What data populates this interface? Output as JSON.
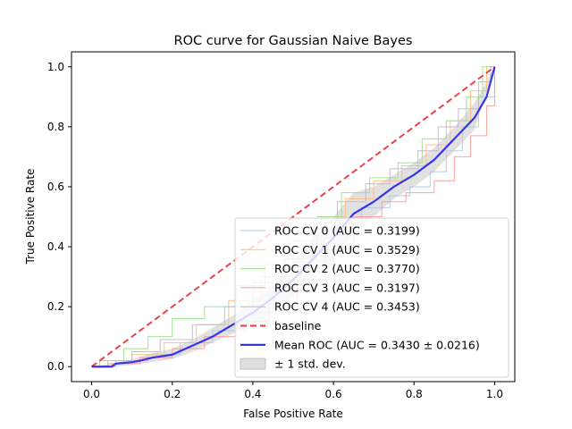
{
  "chart_data": {
    "type": "line",
    "title": "ROC curve for Gaussian Naive Bayes",
    "xlabel": "False Positive Rate",
    "ylabel": "True Positive Rate",
    "xlim": [
      -0.05,
      1.05
    ],
    "ylim": [
      -0.05,
      1.05
    ],
    "xticks": [
      "0.0",
      "0.2",
      "0.4",
      "0.6",
      "0.8",
      "1.0"
    ],
    "yticks": [
      "0.0",
      "0.2",
      "0.4",
      "0.6",
      "0.8",
      "1.0"
    ],
    "grid": false,
    "legend_position": "lower right",
    "series": [
      {
        "name": "ROC CV 0 (AUC = 0.3199)",
        "color": "#aec7e8",
        "points": [
          [
            0,
            0
          ],
          [
            0.06,
            0
          ],
          [
            0.06,
            0.02
          ],
          [
            0.14,
            0.02
          ],
          [
            0.14,
            0.04
          ],
          [
            0.22,
            0.04
          ],
          [
            0.22,
            0.08
          ],
          [
            0.3,
            0.08
          ],
          [
            0.3,
            0.12
          ],
          [
            0.38,
            0.12
          ],
          [
            0.38,
            0.18
          ],
          [
            0.45,
            0.18
          ],
          [
            0.45,
            0.25
          ],
          [
            0.52,
            0.25
          ],
          [
            0.52,
            0.33
          ],
          [
            0.6,
            0.33
          ],
          [
            0.6,
            0.44
          ],
          [
            0.67,
            0.44
          ],
          [
            0.67,
            0.53
          ],
          [
            0.74,
            0.53
          ],
          [
            0.74,
            0.57
          ],
          [
            0.79,
            0.57
          ],
          [
            0.79,
            0.6
          ],
          [
            0.84,
            0.6
          ],
          [
            0.84,
            0.65
          ],
          [
            0.88,
            0.65
          ],
          [
            0.88,
            0.72
          ],
          [
            0.92,
            0.72
          ],
          [
            0.92,
            0.8
          ],
          [
            0.96,
            0.8
          ],
          [
            0.96,
            0.9
          ],
          [
            1,
            0.9
          ],
          [
            1,
            1
          ]
        ]
      },
      {
        "name": "ROC CV 1 (AUC = 0.3529)",
        "color": "#ffbb78",
        "points": [
          [
            0,
            0
          ],
          [
            0.04,
            0
          ],
          [
            0.04,
            0.01
          ],
          [
            0.1,
            0.01
          ],
          [
            0.1,
            0.04
          ],
          [
            0.18,
            0.04
          ],
          [
            0.18,
            0.08
          ],
          [
            0.26,
            0.08
          ],
          [
            0.26,
            0.14
          ],
          [
            0.34,
            0.14
          ],
          [
            0.34,
            0.22
          ],
          [
            0.42,
            0.22
          ],
          [
            0.42,
            0.3
          ],
          [
            0.5,
            0.3
          ],
          [
            0.5,
            0.4
          ],
          [
            0.57,
            0.4
          ],
          [
            0.57,
            0.5
          ],
          [
            0.63,
            0.5
          ],
          [
            0.63,
            0.56
          ],
          [
            0.7,
            0.56
          ],
          [
            0.7,
            0.62
          ],
          [
            0.77,
            0.62
          ],
          [
            0.77,
            0.67
          ],
          [
            0.83,
            0.67
          ],
          [
            0.83,
            0.74
          ],
          [
            0.89,
            0.74
          ],
          [
            0.89,
            0.82
          ],
          [
            0.94,
            0.82
          ],
          [
            0.94,
            0.92
          ],
          [
            0.98,
            0.92
          ],
          [
            0.98,
            1
          ],
          [
            1,
            1
          ]
        ]
      },
      {
        "name": "ROC CV 2 (AUC = 0.3770)",
        "color": "#98df8a",
        "points": [
          [
            0,
            0
          ],
          [
            0.02,
            0
          ],
          [
            0.02,
            0.02
          ],
          [
            0.08,
            0.02
          ],
          [
            0.08,
            0.06
          ],
          [
            0.14,
            0.06
          ],
          [
            0.14,
            0.1
          ],
          [
            0.2,
            0.1
          ],
          [
            0.2,
            0.16
          ],
          [
            0.28,
            0.16
          ],
          [
            0.28,
            0.2
          ],
          [
            0.36,
            0.2
          ],
          [
            0.36,
            0.27
          ],
          [
            0.43,
            0.27
          ],
          [
            0.43,
            0.34
          ],
          [
            0.5,
            0.34
          ],
          [
            0.5,
            0.42
          ],
          [
            0.56,
            0.42
          ],
          [
            0.56,
            0.5
          ],
          [
            0.62,
            0.5
          ],
          [
            0.62,
            0.58
          ],
          [
            0.69,
            0.58
          ],
          [
            0.69,
            0.63
          ],
          [
            0.76,
            0.63
          ],
          [
            0.76,
            0.68
          ],
          [
            0.82,
            0.68
          ],
          [
            0.82,
            0.76
          ],
          [
            0.88,
            0.76
          ],
          [
            0.88,
            0.82
          ],
          [
            0.93,
            0.82
          ],
          [
            0.93,
            0.9
          ],
          [
            0.97,
            0.9
          ],
          [
            0.97,
            1
          ],
          [
            1,
            1
          ]
        ]
      },
      {
        "name": "ROC CV 3 (AUC = 0.3197)",
        "color": "#ff9896",
        "points": [
          [
            0,
            0
          ],
          [
            0.05,
            0
          ],
          [
            0.05,
            0.01
          ],
          [
            0.12,
            0.01
          ],
          [
            0.12,
            0.03
          ],
          [
            0.2,
            0.03
          ],
          [
            0.2,
            0.06
          ],
          [
            0.28,
            0.06
          ],
          [
            0.28,
            0.1
          ],
          [
            0.36,
            0.1
          ],
          [
            0.36,
            0.15
          ],
          [
            0.44,
            0.15
          ],
          [
            0.44,
            0.21
          ],
          [
            0.51,
            0.21
          ],
          [
            0.51,
            0.29
          ],
          [
            0.58,
            0.29
          ],
          [
            0.58,
            0.39
          ],
          [
            0.65,
            0.39
          ],
          [
            0.65,
            0.5
          ],
          [
            0.72,
            0.5
          ],
          [
            0.72,
            0.55
          ],
          [
            0.78,
            0.55
          ],
          [
            0.78,
            0.58
          ],
          [
            0.85,
            0.58
          ],
          [
            0.85,
            0.62
          ],
          [
            0.9,
            0.62
          ],
          [
            0.9,
            0.7
          ],
          [
            0.94,
            0.7
          ],
          [
            0.94,
            0.77
          ],
          [
            0.98,
            0.77
          ],
          [
            0.98,
            0.87
          ],
          [
            1,
            0.87
          ],
          [
            1,
            1
          ]
        ]
      },
      {
        "name": "ROC CV 4 (AUC = 0.3453)",
        "color": "#c5b0d5",
        "points": [
          [
            0,
            0
          ],
          [
            0.04,
            0
          ],
          [
            0.04,
            0.02
          ],
          [
            0.1,
            0.02
          ],
          [
            0.1,
            0.05
          ],
          [
            0.17,
            0.05
          ],
          [
            0.17,
            0.09
          ],
          [
            0.25,
            0.09
          ],
          [
            0.25,
            0.14
          ],
          [
            0.33,
            0.14
          ],
          [
            0.33,
            0.2
          ],
          [
            0.4,
            0.2
          ],
          [
            0.4,
            0.28
          ],
          [
            0.48,
            0.28
          ],
          [
            0.48,
            0.36
          ],
          [
            0.55,
            0.36
          ],
          [
            0.55,
            0.46
          ],
          [
            0.61,
            0.46
          ],
          [
            0.61,
            0.55
          ],
          [
            0.68,
            0.55
          ],
          [
            0.68,
            0.61
          ],
          [
            0.74,
            0.61
          ],
          [
            0.74,
            0.66
          ],
          [
            0.81,
            0.66
          ],
          [
            0.81,
            0.72
          ],
          [
            0.86,
            0.72
          ],
          [
            0.86,
            0.8
          ],
          [
            0.91,
            0.8
          ],
          [
            0.91,
            0.86
          ],
          [
            0.96,
            0.86
          ],
          [
            0.96,
            0.95
          ],
          [
            0.99,
            0.95
          ],
          [
            0.99,
            1
          ],
          [
            1,
            1
          ]
        ]
      },
      {
        "name": "baseline",
        "color": "#e8383d",
        "style": "dashed",
        "points": [
          [
            0,
            0
          ],
          [
            1,
            1
          ]
        ]
      },
      {
        "name": "Mean ROC (AUC = 0.3430 ± 0.0216)",
        "color": "#2b2bef",
        "style": "bold",
        "points": [
          [
            0,
            0
          ],
          [
            0.05,
            0
          ],
          [
            0.06,
            0.01
          ],
          [
            0.1,
            0.015
          ],
          [
            0.12,
            0.02
          ],
          [
            0.15,
            0.03
          ],
          [
            0.2,
            0.04
          ],
          [
            0.25,
            0.07
          ],
          [
            0.3,
            0.1
          ],
          [
            0.35,
            0.14
          ],
          [
            0.4,
            0.18
          ],
          [
            0.45,
            0.23
          ],
          [
            0.5,
            0.29
          ],
          [
            0.55,
            0.36
          ],
          [
            0.6,
            0.43
          ],
          [
            0.65,
            0.51
          ],
          [
            0.7,
            0.55
          ],
          [
            0.75,
            0.6
          ],
          [
            0.8,
            0.64
          ],
          [
            0.85,
            0.69
          ],
          [
            0.9,
            0.76
          ],
          [
            0.95,
            0.83
          ],
          [
            0.98,
            0.9
          ],
          [
            1,
            1
          ]
        ]
      }
    ],
    "std_band": {
      "name": "± 1 std. dev.",
      "color": "#c8c8c8",
      "x": [
        0,
        0.05,
        0.1,
        0.15,
        0.2,
        0.25,
        0.3,
        0.35,
        0.4,
        0.45,
        0.5,
        0.55,
        0.6,
        0.65,
        0.7,
        0.75,
        0.8,
        0.85,
        0.9,
        0.95,
        1
      ],
      "lower": [
        0,
        0,
        0.005,
        0.015,
        0.025,
        0.05,
        0.08,
        0.11,
        0.14,
        0.18,
        0.23,
        0.29,
        0.36,
        0.44,
        0.5,
        0.56,
        0.6,
        0.65,
        0.72,
        0.79,
        1
      ],
      "upper": [
        0,
        0.01,
        0.025,
        0.045,
        0.06,
        0.09,
        0.13,
        0.17,
        0.22,
        0.28,
        0.35,
        0.43,
        0.5,
        0.58,
        0.6,
        0.64,
        0.68,
        0.73,
        0.8,
        0.88,
        1
      ]
    }
  }
}
